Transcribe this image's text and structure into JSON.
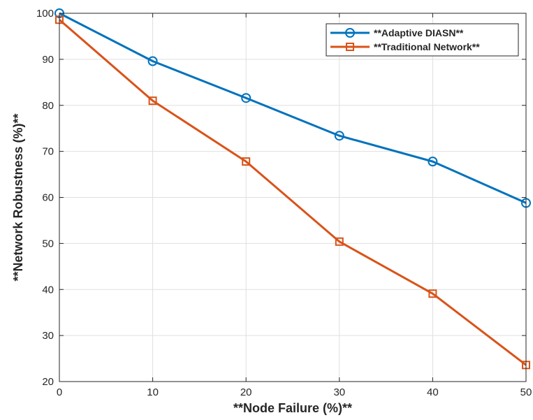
{
  "chart_data": {
    "type": "line",
    "xlabel": "**Node Failure (%)**",
    "ylabel": "**Network Robustness (%)**",
    "xlim": [
      0,
      50
    ],
    "ylim": [
      20,
      100
    ],
    "xticks": [
      0,
      10,
      20,
      30,
      40,
      50
    ],
    "yticks": [
      20,
      30,
      40,
      50,
      60,
      70,
      80,
      90,
      100
    ],
    "grid": true,
    "legend_position": "top-right",
    "x": [
      0,
      10,
      20,
      30,
      40,
      50
    ],
    "series": [
      {
        "name": "**Adaptive DIASN**",
        "values": [
          100,
          89.6,
          81.6,
          73.4,
          67.8,
          58.8
        ],
        "color": "#0072BD",
        "marker": "circle"
      },
      {
        "name": "**Traditional Network**",
        "values": [
          98.6,
          81,
          67.8,
          50.4,
          39.1,
          23.6
        ],
        "color": "#D95319",
        "marker": "square"
      }
    ]
  }
}
